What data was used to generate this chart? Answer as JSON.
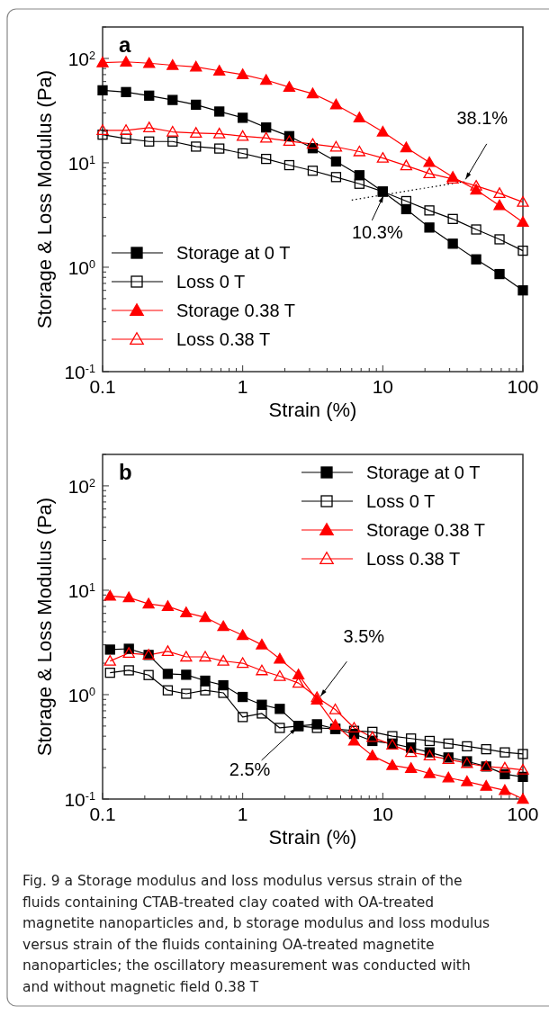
{
  "chart_data": [
    {
      "type": "line",
      "title": "a",
      "xlabel": "Strain (%)",
      "ylabel": "Storage & Loss Modulus (Pa)",
      "log": "xy",
      "xlim": [
        0.1,
        100
      ],
      "ylim": [
        0.1,
        200
      ],
      "xticks": [
        0.1,
        {
          "value": 0.2,
          "label": null
        },
        {
          "value": 0.3,
          "label": null
        },
        {
          "value": 0.4,
          "label": null
        },
        {
          "value": 0.5,
          "label": null
        },
        {
          "value": 0.6,
          "label": null
        },
        {
          "value": 0.7,
          "label": null
        },
        {
          "value": 0.8,
          "label": null
        },
        {
          "value": 0.9,
          "label": null
        },
        1,
        {
          "value": 2,
          "label": null
        },
        {
          "value": 3,
          "label": null
        },
        {
          "value": 4,
          "label": null
        },
        {
          "value": 5,
          "label": null
        },
        {
          "value": 6,
          "label": null
        },
        {
          "value": 7,
          "label": null
        },
        {
          "value": 8,
          "label": null
        },
        {
          "value": 9,
          "label": null
        },
        10,
        {
          "value": 20,
          "label": null
        },
        {
          "value": 30,
          "label": null
        },
        {
          "value": 40,
          "label": null
        },
        {
          "value": 50,
          "label": null
        },
        {
          "value": 60,
          "label": null
        },
        {
          "value": 70,
          "label": null
        },
        {
          "value": 80,
          "label": null
        },
        {
          "value": 90,
          "label": null
        },
        100
      ],
      "yticks": [
        {
          "value": 0.1,
          "label": "10$^{-1}$"
        },
        {
          "value": 0.2,
          "label": null
        },
        {
          "value": 0.3,
          "label": null
        },
        {
          "value": 0.4,
          "label": null
        },
        {
          "value": 0.5,
          "label": null
        },
        {
          "value": 0.6,
          "label": null
        },
        {
          "value": 0.7,
          "label": null
        },
        {
          "value": 0.8,
          "label": null
        },
        {
          "value": 0.9,
          "label": null
        },
        {
          "value": 1,
          "label": "10$^{0}$"
        },
        {
          "value": 2,
          "label": null
        },
        {
          "value": 3,
          "label": null
        },
        {
          "value": 4,
          "label": null
        },
        {
          "value": 5,
          "label": null
        },
        {
          "value": 6,
          "label": null
        },
        {
          "value": 7,
          "label": null
        },
        {
          "value": 8,
          "label": null
        },
        {
          "value": 9,
          "label": null
        },
        {
          "value": 10,
          "label": "10$^{1}$"
        },
        {
          "value": 20,
          "label": null
        },
        {
          "value": 30,
          "label": null
        },
        {
          "value": 40,
          "label": null
        },
        {
          "value": 50,
          "label": null
        },
        {
          "value": 60,
          "label": null
        },
        {
          "value": 70,
          "label": null
        },
        {
          "value": 80,
          "label": null
        },
        {
          "value": 90,
          "label": null
        },
        {
          "value": 100,
          "label": "10$^{2}$"
        },
        {
          "value": 200,
          "label": null
        }
      ],
      "grid": false,
      "legend": "bottom left",
      "line_style": "solid",
      "x": [
        0.1,
        0.147,
        0.215,
        0.316,
        0.464,
        0.681,
        1,
        1.47,
        2.15,
        3.16,
        4.64,
        6.81,
        10,
        14.7,
        21.5,
        31.6,
        46.4,
        68.1,
        100
      ],
      "series": [
        {
          "name": "Storage at 0 T",
          "color": "#000000",
          "marker": "square",
          "values": [
            49.5,
            47.6,
            44,
            40,
            36,
            31,
            27,
            21.8,
            18,
            13.8,
            10.3,
            7.6,
            5.3,
            3.6,
            2.4,
            1.68,
            1.19,
            0.86,
            0.6
          ]
        },
        {
          "name": "Loss 0 T",
          "color": "#000000",
          "marker": "square",
          "values": [
            18.6,
            17,
            16,
            16,
            14.3,
            13.7,
            12.3,
            10.9,
            9.5,
            8.4,
            7.3,
            6.3,
            5.3,
            4.3,
            3.5,
            2.9,
            2.3,
            1.85,
            1.44
          ]
        },
        {
          "name": "Storage 0.38 T",
          "color": "#ff0000",
          "marker": "triangle",
          "values": [
            91,
            92.7,
            90,
            86,
            83,
            76,
            70,
            62,
            53,
            46,
            36,
            27,
            19.8,
            14,
            10.1,
            7.3,
            5.5,
            3.9,
            2.7
          ]
        },
        {
          "name": "Loss 0.38 T",
          "color": "#ff0000",
          "marker": "triangle",
          "values": [
            20.5,
            20.5,
            21.7,
            19.8,
            19.3,
            19,
            18,
            17.3,
            16.1,
            15.1,
            14.2,
            12.8,
            11.1,
            9.4,
            7.9,
            7,
            6,
            5.1,
            4.2
          ]
        },
        {
          "type": "line",
          "color": "#000000",
          "marker": "none",
          "line_style": "dotted",
          "x": [
            6,
            38.1
          ],
          "values": [
            4.4,
            6.6
          ]
        }
      ],
      "annotations": [
        {
          "text": "38.1%",
          "x": 38.1,
          "y": 6.6
        },
        {
          "text": "10.3%",
          "x": 10.3,
          "y": 5.1
        }
      ]
    },
    {
      "type": "line",
      "title": "b",
      "xlabel": "Strain (%)",
      "ylabel": "Storage & Loss Modulus (Pa)",
      "log": "xy",
      "xlim": [
        0.1,
        100
      ],
      "ylim": [
        0.1,
        200
      ],
      "xticks": [
        0.1,
        {
          "value": 0.2,
          "label": null
        },
        {
          "value": 0.3,
          "label": null
        },
        {
          "value": 0.4,
          "label": null
        },
        {
          "value": 0.5,
          "label": null
        },
        {
          "value": 0.6,
          "label": null
        },
        {
          "value": 0.7,
          "label": null
        },
        {
          "value": 0.8,
          "label": null
        },
        {
          "value": 0.9,
          "label": null
        },
        1,
        {
          "value": 2,
          "label": null
        },
        {
          "value": 3,
          "label": null
        },
        {
          "value": 4,
          "label": null
        },
        {
          "value": 5,
          "label": null
        },
        {
          "value": 6,
          "label": null
        },
        {
          "value": 7,
          "label": null
        },
        {
          "value": 8,
          "label": null
        },
        {
          "value": 9,
          "label": null
        },
        10,
        {
          "value": 20,
          "label": null
        },
        {
          "value": 30,
          "label": null
        },
        {
          "value": 40,
          "label": null
        },
        {
          "value": 50,
          "label": null
        },
        {
          "value": 60,
          "label": null
        },
        {
          "value": 70,
          "label": null
        },
        {
          "value": 80,
          "label": null
        },
        {
          "value": 90,
          "label": null
        },
        100
      ],
      "yticks": [
        {
          "value": 0.1,
          "label": "10$^{-1}$"
        },
        {
          "value": 0.2,
          "label": null
        },
        {
          "value": 0.3,
          "label": null
        },
        {
          "value": 0.4,
          "label": null
        },
        {
          "value": 0.5,
          "label": null
        },
        {
          "value": 0.6,
          "label": null
        },
        {
          "value": 0.7,
          "label": null
        },
        {
          "value": 0.8,
          "label": null
        },
        {
          "value": 0.9,
          "label": null
        },
        {
          "value": 1,
          "label": "10$^{0}$"
        },
        {
          "value": 2,
          "label": null
        },
        {
          "value": 3,
          "label": null
        },
        {
          "value": 4,
          "label": null
        },
        {
          "value": 5,
          "label": null
        },
        {
          "value": 6,
          "label": null
        },
        {
          "value": 7,
          "label": null
        },
        {
          "value": 8,
          "label": null
        },
        {
          "value": 9,
          "label": null
        },
        {
          "value": 10,
          "label": "10$^{1}$"
        },
        {
          "value": 20,
          "label": null
        },
        {
          "value": 30,
          "label": null
        },
        {
          "value": 40,
          "label": null
        },
        {
          "value": 50,
          "label": null
        },
        {
          "value": 60,
          "label": null
        },
        {
          "value": 70,
          "label": null
        },
        {
          "value": 80,
          "label": null
        },
        {
          "value": 90,
          "label": null
        },
        {
          "value": 100,
          "label": "10$^{2}$"
        },
        {
          "value": 200,
          "label": null
        }
      ],
      "grid": false,
      "legend": "top right",
      "line_style": "solid",
      "x": [
        0.113,
        0.154,
        0.213,
        0.292,
        0.395,
        0.54,
        0.727,
        1,
        1.37,
        1.84,
        2.5,
        3.39,
        4.58,
        6.24,
        8.43,
        11.7,
        15.9,
        21.6,
        29.4,
        39.9,
        54.7,
        74.3,
        100
      ],
      "series": [
        {
          "name": "Storage at 0 T",
          "color": "#000000",
          "marker": "square",
          "values": [
            2.7,
            2.75,
            2.4,
            1.58,
            1.55,
            1.36,
            1.23,
            0.95,
            0.8,
            0.73,
            0.5,
            0.52,
            0.47,
            0.42,
            0.36,
            0.34,
            0.31,
            0.28,
            0.25,
            0.23,
            0.205,
            0.173,
            0.163
          ]
        },
        {
          "name": "Loss 0 T",
          "color": "#000000",
          "marker": "square",
          "values": [
            1.62,
            1.71,
            1.54,
            1.1,
            1.02,
            1.1,
            1.04,
            0.61,
            0.66,
            0.48,
            0.5,
            0.48,
            0.47,
            0.45,
            0.44,
            0.4,
            0.38,
            0.36,
            0.34,
            0.32,
            0.3,
            0.28,
            0.27
          ]
        },
        {
          "name": "Storage 0.38 T",
          "color": "#ff0000",
          "marker": "triangle",
          "values": [
            8.8,
            8.5,
            7.4,
            7,
            6.1,
            5.5,
            4.5,
            3.7,
            3,
            2.2,
            1.55,
            0.89,
            0.51,
            0.36,
            0.26,
            0.21,
            0.197,
            0.176,
            0.16,
            0.147,
            0.133,
            0.121,
            0.1
          ]
        },
        {
          "name": "Loss 0.38 T",
          "color": "#ff0000",
          "marker": "triangle",
          "values": [
            2.1,
            2.5,
            2.4,
            2.6,
            2.3,
            2.3,
            2.1,
            2,
            1.7,
            1.5,
            1.29,
            0.94,
            0.72,
            0.48,
            0.39,
            0.33,
            0.28,
            0.26,
            0.24,
            0.22,
            0.205,
            0.199,
            0.19
          ]
        }
      ],
      "annotations": [
        {
          "text": "3.5%",
          "x": 3.5,
          "y": 0.92
        },
        {
          "text": "2.5%",
          "x": 2.5,
          "y": 0.5
        },
        "Fig. 9  a Storage modulus and loss modulus versus strain of the fluids containing CTAB-treated clay coated with OA-treated magnetite nanoparticles and, b storage modulus and loss modulus versus strain of the fluids containing OA-treated magnetite nanoparticles; the oscillatory measurement was conducted with and without magnetic field 0.38 T"
      ]
    }
  ]
}
